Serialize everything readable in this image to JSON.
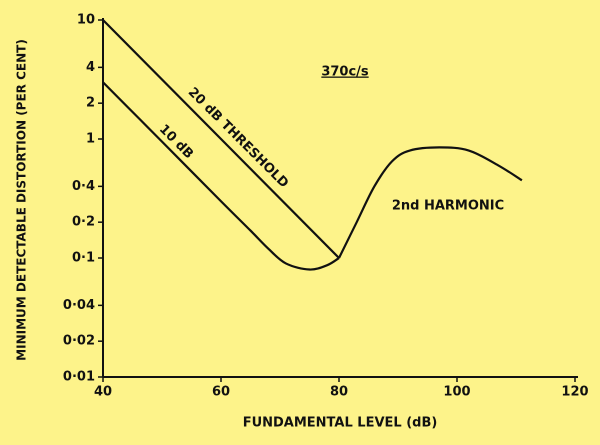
{
  "chart_data": {
    "type": "line",
    "log_y": true,
    "xlabel": "FUNDAMENTAL LEVEL (dB)",
    "ylabel": "MINIMUM DETECTABLE DISTORTION (PER CENT)",
    "annotation": "370c/s",
    "xlim": [
      40,
      120
    ],
    "xticks": [
      40,
      60,
      80,
      100,
      120
    ],
    "ylim": [
      0.01,
      10
    ],
    "yticks": [
      {
        "value": 0.01,
        "label": "0·01"
      },
      {
        "value": 0.02,
        "label": "0·02"
      },
      {
        "value": 0.04,
        "label": "0·04"
      },
      {
        "value": 0.1,
        "label": "0·1"
      },
      {
        "value": 0.2,
        "label": "0·2"
      },
      {
        "value": 0.4,
        "label": "0·4"
      },
      1,
      2,
      4,
      10
    ],
    "series": [
      {
        "name": "20 dB THRESHOLD",
        "color": "#111111",
        "x": [
          40,
          80
        ],
        "values": [
          10,
          0.1
        ]
      },
      {
        "name": "10 dB",
        "color": "#111111",
        "x": [
          40,
          50,
          60,
          65,
          68,
          71,
          75,
          78,
          80
        ],
        "values": [
          3,
          0.95,
          0.3,
          0.17,
          0.12,
          0.09,
          0.08,
          0.087,
          0.1
        ]
      },
      {
        "name": "2nd HARMONIC",
        "color": "#111111",
        "x": [
          80,
          83,
          86,
          89,
          92,
          97,
          102,
          107,
          111
        ],
        "values": [
          0.1,
          0.2,
          0.4,
          0.65,
          0.8,
          0.85,
          0.8,
          0.6,
          0.45
        ]
      }
    ]
  }
}
